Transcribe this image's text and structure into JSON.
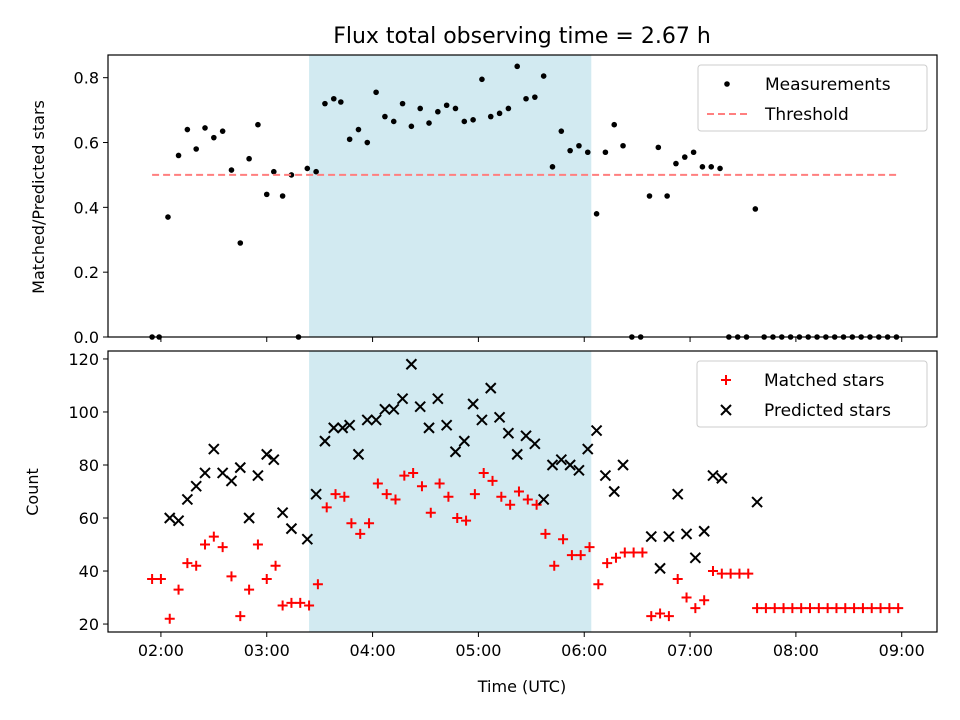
{
  "chart_data": [
    {
      "type": "scatter",
      "title": "Flux total observing time = 2.67 h",
      "ylabel": "Matched/Predicted stars",
      "xlabel": "",
      "xlim": [
        "01:30",
        "09:20"
      ],
      "ylim": [
        0,
        0.87
      ],
      "yticks": [
        0.0,
        0.2,
        0.4,
        0.6,
        0.8
      ],
      "ytick_labels": [
        "0.0",
        "0.2",
        "0.4",
        "0.6",
        "0.8"
      ],
      "xticks": [
        "02:00",
        "03:00",
        "04:00",
        "05:00",
        "06:00",
        "07:00",
        "08:00",
        "09:00"
      ],
      "shaded_region": {
        "x": [
          "03:24",
          "06:04"
        ],
        "color": "#add8e6"
      },
      "grid": false,
      "legend": "top-right",
      "series": [
        {
          "name": "Measurements",
          "marker": "dot",
          "color": "#000000",
          "points": [
            [
              "01:55",
              0.0
            ],
            [
              "01:59",
              0.0
            ],
            [
              "02:04",
              0.37
            ],
            [
              "02:10",
              0.56
            ],
            [
              "02:15",
              0.64
            ],
            [
              "02:20",
              0.58
            ],
            [
              "02:25",
              0.645
            ],
            [
              "02:30",
              0.615
            ],
            [
              "02:35",
              0.635
            ],
            [
              "02:40",
              0.515
            ],
            [
              "02:45",
              0.29
            ],
            [
              "02:50",
              0.55
            ],
            [
              "02:55",
              0.655
            ],
            [
              "03:00",
              0.44
            ],
            [
              "03:04",
              0.51
            ],
            [
              "03:09",
              0.435
            ],
            [
              "03:14",
              0.5
            ],
            [
              "03:18",
              0.0
            ],
            [
              "03:23",
              0.52
            ],
            [
              "03:28",
              0.51
            ],
            [
              "03:33",
              0.72
            ],
            [
              "03:38",
              0.735
            ],
            [
              "03:42",
              0.725
            ],
            [
              "03:47",
              0.61
            ],
            [
              "03:52",
              0.64
            ],
            [
              "03:57",
              0.6
            ],
            [
              "04:02",
              0.755
            ],
            [
              "04:07",
              0.68
            ],
            [
              "04:12",
              0.665
            ],
            [
              "04:17",
              0.72
            ],
            [
              "04:22",
              0.65
            ],
            [
              "04:27",
              0.705
            ],
            [
              "04:32",
              0.66
            ],
            [
              "04:37",
              0.695
            ],
            [
              "04:42",
              0.715
            ],
            [
              "04:47",
              0.705
            ],
            [
              "04:52",
              0.665
            ],
            [
              "04:57",
              0.67
            ],
            [
              "05:02",
              0.795
            ],
            [
              "05:07",
              0.68
            ],
            [
              "05:12",
              0.69
            ],
            [
              "05:17",
              0.705
            ],
            [
              "05:22",
              0.835
            ],
            [
              "05:27",
              0.735
            ],
            [
              "05:32",
              0.74
            ],
            [
              "05:37",
              0.805
            ],
            [
              "05:42",
              0.525
            ],
            [
              "05:47",
              0.635
            ],
            [
              "05:52",
              0.575
            ],
            [
              "05:57",
              0.59
            ],
            [
              "06:02",
              0.57
            ],
            [
              "06:07",
              0.38
            ],
            [
              "06:12",
              0.57
            ],
            [
              "06:17",
              0.655
            ],
            [
              "06:22",
              0.59
            ],
            [
              "06:27",
              0.0
            ],
            [
              "06:32",
              0.0
            ],
            [
              "06:37",
              0.435
            ],
            [
              "06:42",
              0.585
            ],
            [
              "06:47",
              0.435
            ],
            [
              "06:52",
              0.535
            ],
            [
              "06:57",
              0.555
            ],
            [
              "07:02",
              0.57
            ],
            [
              "07:07",
              0.525
            ],
            [
              "07:12",
              0.525
            ],
            [
              "07:17",
              0.52
            ],
            [
              "07:22",
              0.0
            ],
            [
              "07:27",
              0.0
            ],
            [
              "07:32",
              0.0
            ],
            [
              "07:37",
              0.395
            ],
            [
              "07:42",
              0.0
            ],
            [
              "07:47",
              0.0
            ],
            [
              "07:52",
              0.0
            ],
            [
              "07:57",
              0.0
            ],
            [
              "08:02",
              0.0
            ],
            [
              "08:07",
              0.0
            ],
            [
              "08:12",
              0.0
            ],
            [
              "08:17",
              0.0
            ],
            [
              "08:22",
              0.0
            ],
            [
              "08:27",
              0.0
            ],
            [
              "08:32",
              0.0
            ],
            [
              "08:37",
              0.0
            ],
            [
              "08:42",
              0.0
            ],
            [
              "08:47",
              0.0
            ],
            [
              "08:52",
              0.0
            ],
            [
              "08:57",
              0.0
            ]
          ]
        },
        {
          "name": "Threshold",
          "marker": "dashed-line",
          "color": "#ff7f7f",
          "points": [
            [
              "01:55",
              0.5
            ],
            [
              "08:57",
              0.5
            ]
          ]
        }
      ]
    },
    {
      "type": "scatter",
      "title": "",
      "ylabel": "Count",
      "xlabel": "Time (UTC)",
      "xlim": [
        "01:30",
        "09:20"
      ],
      "ylim": [
        17,
        123
      ],
      "yticks": [
        20,
        40,
        60,
        80,
        100,
        120
      ],
      "ytick_labels": [
        "20",
        "40",
        "60",
        "80",
        "100",
        "120"
      ],
      "xticks": [
        "02:00",
        "03:00",
        "04:00",
        "05:00",
        "06:00",
        "07:00",
        "08:00",
        "09:00"
      ],
      "xtick_labels": [
        "02:00",
        "03:00",
        "04:00",
        "05:00",
        "06:00",
        "07:00",
        "08:00",
        "09:00"
      ],
      "shaded_region": {
        "x": [
          "03:24",
          "06:04"
        ],
        "color": "#add8e6"
      },
      "grid": false,
      "legend": "top-right",
      "series": [
        {
          "name": "Matched stars",
          "marker": "plus",
          "color": "#ff0000",
          "points": [
            [
              "01:55",
              37
            ],
            [
              "02:00",
              37
            ],
            [
              "02:05",
              22
            ],
            [
              "02:10",
              33
            ],
            [
              "02:15",
              43
            ],
            [
              "02:20",
              42
            ],
            [
              "02:25",
              50
            ],
            [
              "02:30",
              53
            ],
            [
              "02:35",
              49
            ],
            [
              "02:40",
              38
            ],
            [
              "02:45",
              23
            ],
            [
              "02:50",
              33
            ],
            [
              "02:55",
              50
            ],
            [
              "03:00",
              37
            ],
            [
              "03:05",
              42
            ],
            [
              "03:09",
              27
            ],
            [
              "03:14",
              28
            ],
            [
              "03:19",
              28
            ],
            [
              "03:24",
              27
            ],
            [
              "03:29",
              35
            ],
            [
              "03:34",
              64
            ],
            [
              "03:39",
              69
            ],
            [
              "03:44",
              68
            ],
            [
              "03:48",
              58
            ],
            [
              "03:53",
              54
            ],
            [
              "03:58",
              58
            ],
            [
              "04:03",
              73
            ],
            [
              "04:08",
              69
            ],
            [
              "04:13",
              67
            ],
            [
              "04:18",
              76
            ],
            [
              "04:23",
              77
            ],
            [
              "04:28",
              72
            ],
            [
              "04:33",
              62
            ],
            [
              "04:38",
              73
            ],
            [
              "04:43",
              68
            ],
            [
              "04:48",
              60
            ],
            [
              "04:53",
              59
            ],
            [
              "04:58",
              69
            ],
            [
              "05:03",
              77
            ],
            [
              "05:08",
              74
            ],
            [
              "05:13",
              68
            ],
            [
              "05:18",
              65
            ],
            [
              "05:23",
              70
            ],
            [
              "05:28",
              67
            ],
            [
              "05:33",
              65
            ],
            [
              "05:38",
              54
            ],
            [
              "05:43",
              42
            ],
            [
              "05:48",
              52
            ],
            [
              "05:53",
              46
            ],
            [
              "05:58",
              46
            ],
            [
              "06:03",
              49
            ],
            [
              "06:08",
              35
            ],
            [
              "06:13",
              43
            ],
            [
              "06:18",
              45
            ],
            [
              "06:23",
              47
            ],
            [
              "06:28",
              47
            ],
            [
              "06:33",
              47
            ],
            [
              "06:38",
              23
            ],
            [
              "06:43",
              24
            ],
            [
              "06:48",
              23
            ],
            [
              "06:53",
              37
            ],
            [
              "06:58",
              30
            ],
            [
              "07:03",
              26
            ],
            [
              "07:08",
              29
            ],
            [
              "07:13",
              40
            ],
            [
              "07:18",
              39
            ],
            [
              "07:23",
              39
            ],
            [
              "07:28",
              39
            ],
            [
              "07:33",
              39
            ],
            [
              "07:38",
              26
            ],
            [
              "07:43",
              26
            ],
            [
              "07:48",
              26
            ],
            [
              "07:53",
              26
            ],
            [
              "07:58",
              26
            ],
            [
              "08:03",
              26
            ],
            [
              "08:08",
              26
            ],
            [
              "08:13",
              26
            ],
            [
              "08:18",
              26
            ],
            [
              "08:23",
              26
            ],
            [
              "08:28",
              26
            ],
            [
              "08:33",
              26
            ],
            [
              "08:38",
              26
            ],
            [
              "08:43",
              26
            ],
            [
              "08:48",
              26
            ],
            [
              "08:53",
              26
            ],
            [
              "08:58",
              26
            ]
          ]
        },
        {
          "name": "Predicted stars",
          "marker": "x",
          "color": "#000000",
          "points": [
            [
              "02:05",
              60
            ],
            [
              "02:10",
              59
            ],
            [
              "02:15",
              67
            ],
            [
              "02:20",
              72
            ],
            [
              "02:25",
              77
            ],
            [
              "02:30",
              86
            ],
            [
              "02:35",
              77
            ],
            [
              "02:40",
              74
            ],
            [
              "02:45",
              79
            ],
            [
              "02:50",
              60
            ],
            [
              "02:55",
              76
            ],
            [
              "03:00",
              84
            ],
            [
              "03:04",
              82
            ],
            [
              "03:09",
              62
            ],
            [
              "03:14",
              56
            ],
            [
              "03:23",
              52
            ],
            [
              "03:28",
              69
            ],
            [
              "03:33",
              89
            ],
            [
              "03:38",
              94
            ],
            [
              "03:43",
              94
            ],
            [
              "03:47",
              95
            ],
            [
              "03:52",
              84
            ],
            [
              "03:57",
              97
            ],
            [
              "04:02",
              97
            ],
            [
              "04:07",
              101
            ],
            [
              "04:12",
              101
            ],
            [
              "04:17",
              105
            ],
            [
              "04:22",
              118
            ],
            [
              "04:27",
              102
            ],
            [
              "04:32",
              94
            ],
            [
              "04:37",
              105
            ],
            [
              "04:42",
              95
            ],
            [
              "04:47",
              85
            ],
            [
              "04:52",
              89
            ],
            [
              "04:57",
              103
            ],
            [
              "05:02",
              97
            ],
            [
              "05:07",
              109
            ],
            [
              "05:12",
              98
            ],
            [
              "05:17",
              92
            ],
            [
              "05:22",
              84
            ],
            [
              "05:27",
              91
            ],
            [
              "05:32",
              88
            ],
            [
              "05:37",
              67
            ],
            [
              "05:42",
              80
            ],
            [
              "05:47",
              82
            ],
            [
              "05:52",
              80
            ],
            [
              "05:57",
              78
            ],
            [
              "06:02",
              86
            ],
            [
              "06:07",
              93
            ],
            [
              "06:12",
              76
            ],
            [
              "06:17",
              70
            ],
            [
              "06:22",
              80
            ],
            [
              "06:38",
              53
            ],
            [
              "06:43",
              41
            ],
            [
              "06:48",
              53
            ],
            [
              "06:53",
              69
            ],
            [
              "06:58",
              54
            ],
            [
              "07:03",
              45
            ],
            [
              "07:08",
              55
            ],
            [
              "07:13",
              76
            ],
            [
              "07:18",
              75
            ],
            [
              "07:38",
              66
            ]
          ]
        }
      ]
    }
  ]
}
